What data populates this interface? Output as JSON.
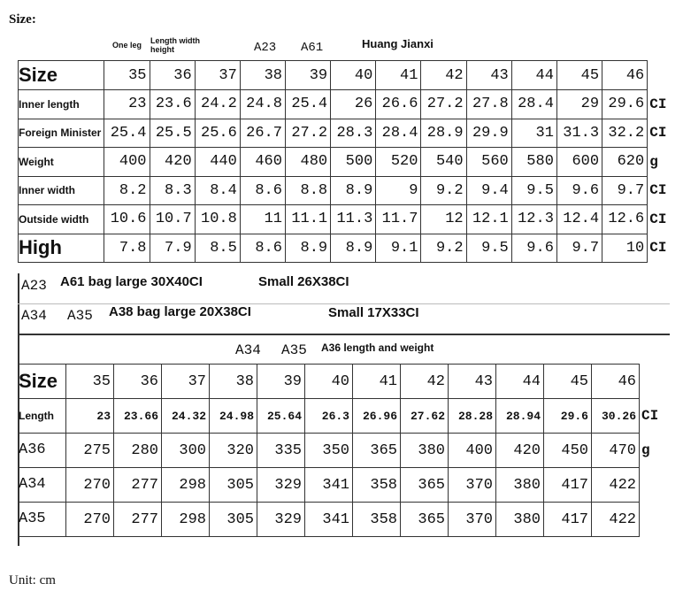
{
  "title": "Size:",
  "unit_note": "Unit: cm",
  "top_header": {
    "one_leg": "One leg",
    "lwh": "Length width height",
    "a23": "A23",
    "a61": "A61",
    "name": "Huang Jianxi"
  },
  "sizes": [
    "35",
    "36",
    "37",
    "38",
    "39",
    "40",
    "41",
    "42",
    "43",
    "44",
    "45",
    "46"
  ],
  "table1": {
    "size_label": "Size",
    "rows": [
      {
        "label": "Inner length",
        "values": [
          "23",
          "23.6",
          "24.2",
          "24.8",
          "25.4",
          "26",
          "26.6",
          "27.2",
          "27.8",
          "28.4",
          "29",
          "29.6"
        ],
        "unit": "CI"
      },
      {
        "label": "Foreign Minister",
        "values": [
          "25.4",
          "25.5",
          "25.6",
          "26.7",
          "27.2",
          "28.3",
          "28.4",
          "28.9",
          "29.9",
          "31",
          "31.3",
          "32.2"
        ],
        "unit": "CI"
      },
      {
        "label": "Weight",
        "values": [
          "400",
          "420",
          "440",
          "460",
          "480",
          "500",
          "520",
          "540",
          "560",
          "580",
          "600",
          "620"
        ],
        "unit": "g"
      },
      {
        "label": "Inner width",
        "values": [
          "8.2",
          "8.3",
          "8.4",
          "8.6",
          "8.8",
          "8.9",
          "9",
          "9.2",
          "9.4",
          "9.5",
          "9.6",
          "9.7"
        ],
        "unit": "CI"
      },
      {
        "label": "Outside width",
        "values": [
          "10.6",
          "10.7",
          "10.8",
          "11",
          "11.1",
          "11.3",
          "11.7",
          "12",
          "12.1",
          "12.3",
          "12.4",
          "12.6"
        ],
        "unit": "CI"
      },
      {
        "label": "High",
        "values": [
          "7.8",
          "7.9",
          "8.5",
          "8.6",
          "8.9",
          "8.9",
          "9.1",
          "9.2",
          "9.5",
          "9.6",
          "9.7",
          "10"
        ],
        "unit": "CI"
      }
    ]
  },
  "notes": {
    "row1": {
      "a": "A23",
      "b": "A61 bag large 30X40CI",
      "c": "Small 26X38CI"
    },
    "row2": {
      "a": "A34",
      "b": "A35",
      "c": "A38 bag large 20X38CI",
      "d": "Small 17X33CI"
    },
    "row3": {
      "a": "A34",
      "b": "A35",
      "c": "A36 length and weight"
    }
  },
  "table2": {
    "size_label": "Size",
    "rows": [
      {
        "label": "Length",
        "values": [
          "23",
          "23.66",
          "24.32",
          "24.98",
          "25.64",
          "26.3",
          "26.96",
          "27.62",
          "28.28",
          "28.94",
          "29.6",
          "30.26"
        ],
        "unit": "CI"
      },
      {
        "label": "A36",
        "values": [
          "275",
          "280",
          "300",
          "320",
          "335",
          "350",
          "365",
          "380",
          "400",
          "420",
          "450",
          "470"
        ],
        "unit": "g"
      },
      {
        "label": "A34",
        "values": [
          "270",
          "277",
          "298",
          "305",
          "329",
          "341",
          "358",
          "365",
          "370",
          "380",
          "417",
          "422"
        ],
        "unit": ""
      },
      {
        "label": "A35",
        "values": [
          "270",
          "277",
          "298",
          "305",
          "329",
          "341",
          "358",
          "365",
          "370",
          "380",
          "417",
          "422"
        ],
        "unit": ""
      }
    ]
  }
}
